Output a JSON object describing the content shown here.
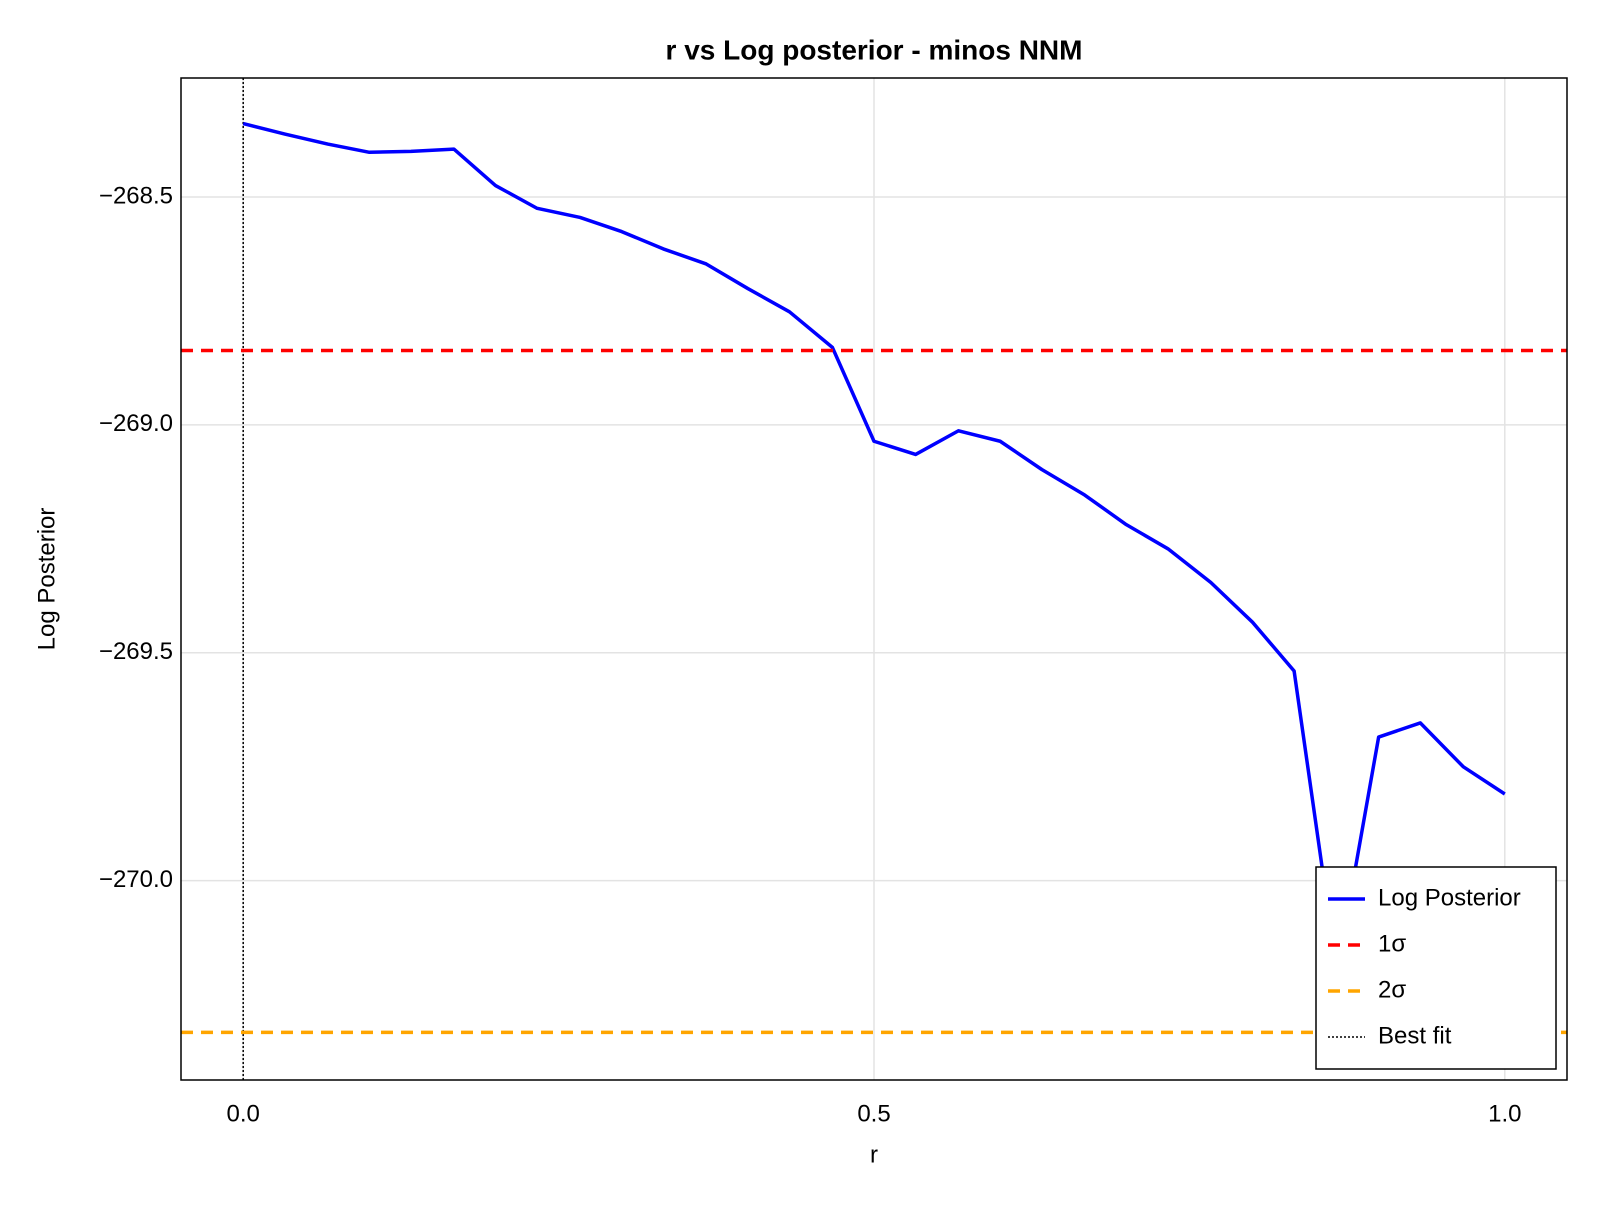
{
  "chart_data": {
    "type": "line",
    "title": "r vs Log posterior - minos NNM",
    "xlabel": "r",
    "ylabel": "Log Posterior",
    "x": [
      0,
      0.033,
      0.067,
      0.1,
      0.133,
      0.167,
      0.2,
      0.233,
      0.267,
      0.3,
      0.333,
      0.367,
      0.4,
      0.433,
      0.467,
      0.5,
      0.533,
      0.567,
      0.6,
      0.633,
      0.667,
      0.7,
      0.733,
      0.767,
      0.8,
      0.833,
      0.867,
      0.9,
      0.933,
      0.967,
      1
    ],
    "series": [
      {
        "name": "Log Posterior",
        "color": "#0000ff",
        "values": [
          -268.339,
          -268.362,
          -268.384,
          -268.402,
          -268.4,
          -268.395,
          -268.475,
          -268.525,
          -268.545,
          -268.576,
          -268.614,
          -268.647,
          -268.701,
          -268.752,
          -268.83,
          -269.036,
          -269.065,
          -269.013,
          -269.036,
          -269.098,
          -269.154,
          -269.219,
          -269.272,
          -269.346,
          -269.433,
          -269.54,
          -270.2,
          -269.685,
          -269.654,
          -269.75,
          -269.81
        ]
      }
    ],
    "hlines": [
      {
        "name": "1σ",
        "color": "#ff0000",
        "value": -268.837
      },
      {
        "name": "2σ",
        "color": "#ffa500",
        "value": -270.333
      }
    ],
    "vlines": [
      {
        "name": "Best fit",
        "color": "#000000",
        "value": 0
      }
    ],
    "xlim": [
      -0.0493,
      1.0493
    ],
    "ylim": [
      -270.4375,
      -268.239
    ],
    "xticks": [
      {
        "value": 0,
        "label": "0.0"
      },
      0.5,
      {
        "value": 1,
        "label": "1.0"
      }
    ],
    "yticks": [
      {
        "value": -268.5,
        "label": "−268.5"
      },
      {
        "value": -269,
        "label": "−269.0"
      },
      {
        "value": -269.5,
        "label": "−269.5"
      },
      {
        "value": -270,
        "label": "−270.0"
      }
    ],
    "grid": true,
    "legend": "lower right"
  }
}
